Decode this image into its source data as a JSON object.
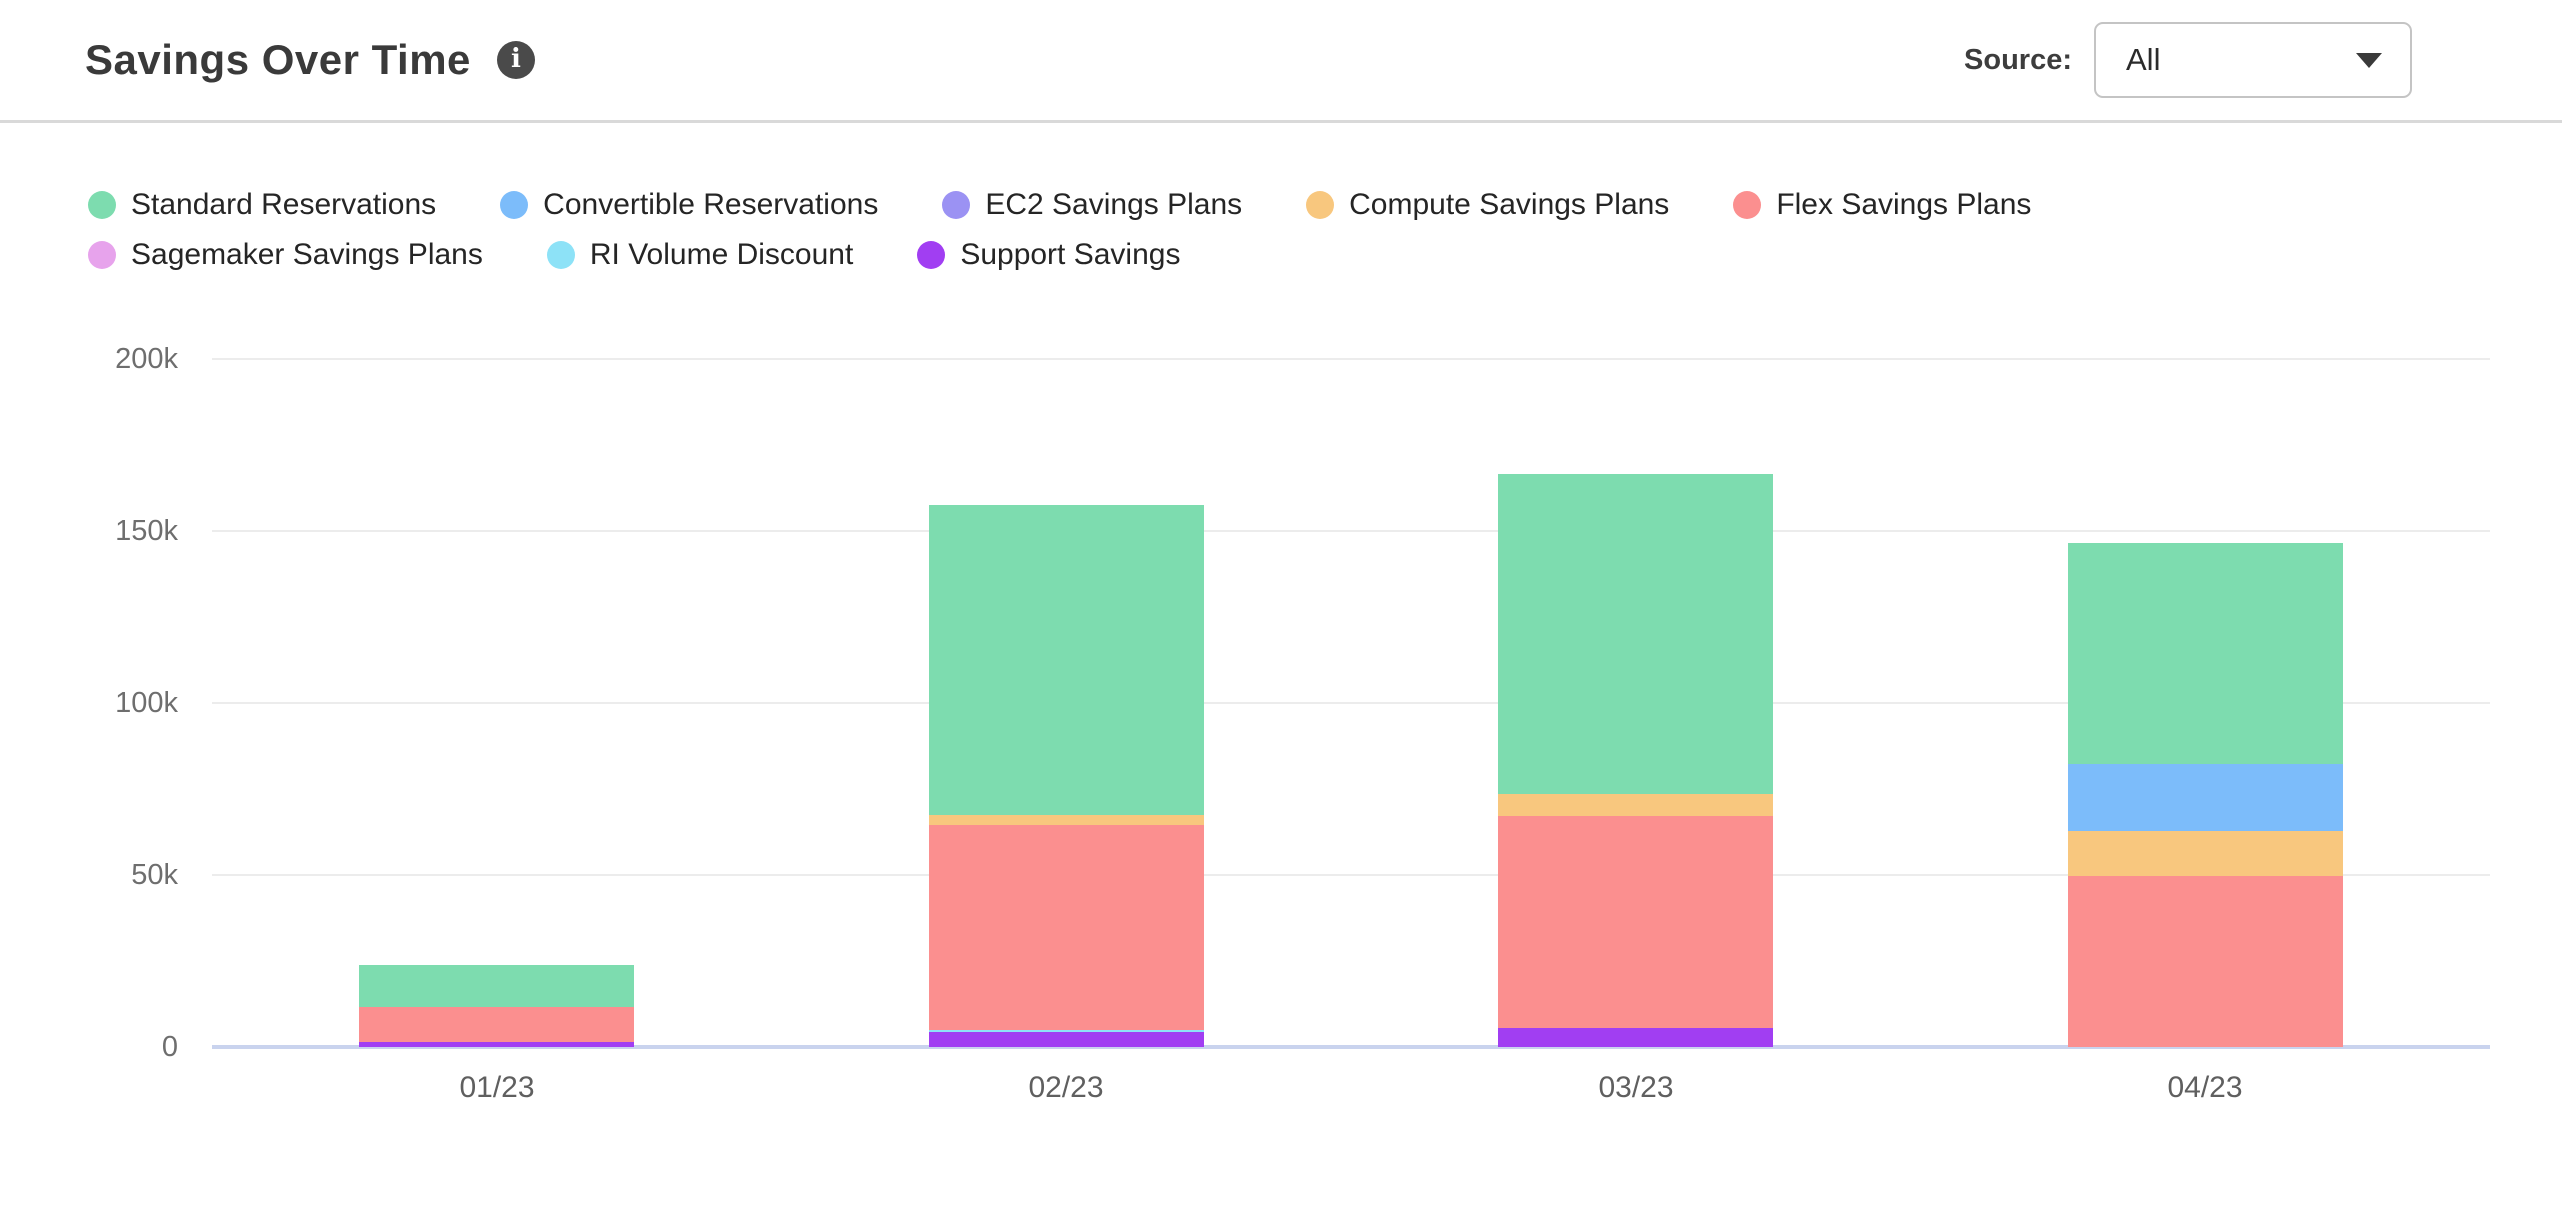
{
  "header": {
    "title": "Savings Over Time",
    "info_icon_glyph": "i",
    "source_label": "Source:",
    "source_value": "All"
  },
  "icons": {
    "info": "info-circle-icon",
    "dropdown": "chevron-down-icon"
  },
  "chart_data": {
    "type": "bar",
    "stacked": true,
    "title": "Savings Over Time",
    "categories": [
      "01/23",
      "02/23",
      "03/23",
      "04/23"
    ],
    "unit": "k (thousands)",
    "ylim": [
      0,
      200
    ],
    "y_ticks": [
      "200k",
      "150k",
      "100k",
      "50k",
      "0"
    ],
    "grid": "horizontal",
    "legend_position": "top",
    "series": [
      {
        "name": "Standard Reservations",
        "color": "#7ddcaf",
        "values": [
          12.2,
          90.1,
          92.9,
          64.3
        ]
      },
      {
        "name": "Convertible Reservations",
        "color": "#7cbcfa",
        "values": [
          0,
          0,
          0,
          19.3
        ]
      },
      {
        "name": "EC2 Savings Plans",
        "color": "#9b92f3",
        "values": [
          0,
          0,
          0,
          0
        ]
      },
      {
        "name": "Compute Savings Plans",
        "color": "#f8c77e",
        "values": [
          0,
          2.9,
          6.4,
          13.1
        ]
      },
      {
        "name": "Flex Savings Plans",
        "color": "#fb8f8f",
        "values": [
          10.1,
          59.6,
          61.8,
          49.8
        ]
      },
      {
        "name": "Sagemaker Savings Plans",
        "color": "#e7a3ec",
        "values": [
          0,
          0,
          0,
          0
        ]
      },
      {
        "name": "RI Volume Discount",
        "color": "#8de2f7",
        "values": [
          0,
          0.6,
          0,
          0
        ]
      },
      {
        "name": "Support Savings",
        "color": "#a13ef2",
        "values": [
          1.5,
          4.4,
          5.5,
          0
        ]
      }
    ],
    "stack_order_note": "bottom-to-top is reverse of series order (Support Savings at bottom, Standard Reservations on top)"
  }
}
